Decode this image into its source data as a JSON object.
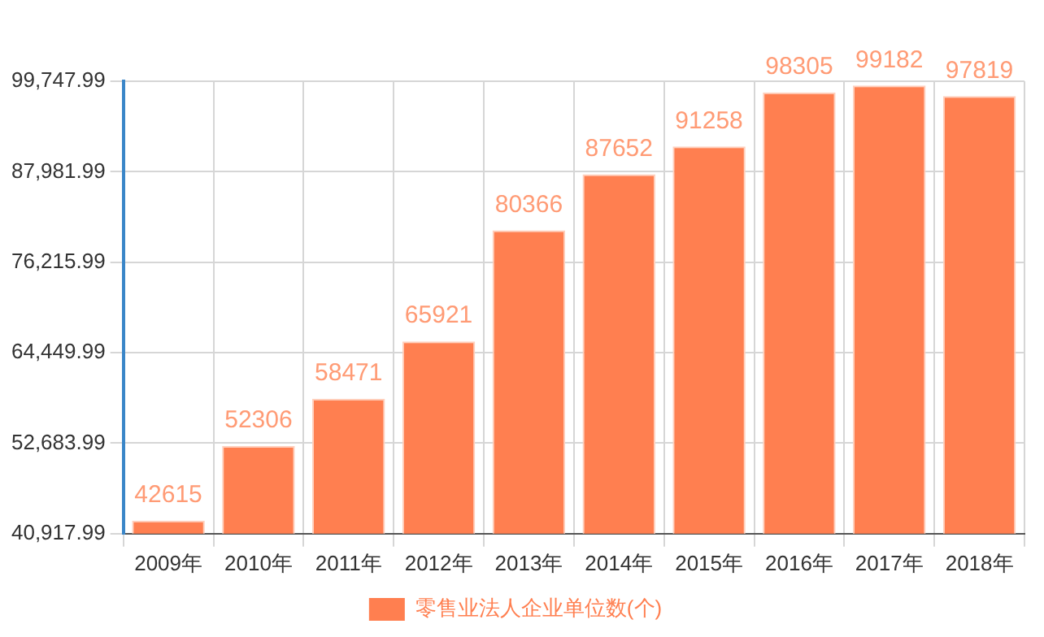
{
  "chart_data": {
    "type": "bar",
    "categories": [
      "2009年",
      "2010年",
      "2011年",
      "2012年",
      "2013年",
      "2014年",
      "2015年",
      "2016年",
      "2017年",
      "2018年"
    ],
    "series": [
      {
        "name": "零售业法人企业单位数(个)",
        "color": "#ff7f50",
        "values": [
          42615,
          52306,
          58471,
          65921,
          80366,
          87652,
          91258,
          98305,
          99182,
          97819
        ]
      }
    ],
    "ylim": [
      40917.99,
      99747.99
    ],
    "yticks": [
      {
        "value": 40917.99,
        "label": "40,917.99"
      },
      {
        "value": 52683.99,
        "label": "52,683.99"
      },
      {
        "value": 64449.99,
        "label": "64,449.99"
      },
      {
        "value": 76215.99,
        "label": "76,215.99"
      },
      {
        "value": 87981.99,
        "label": "87,981.99"
      },
      {
        "value": 99747.99,
        "label": "99,747.99"
      }
    ],
    "grid": true,
    "legend": "bottom",
    "data_labels": true
  }
}
